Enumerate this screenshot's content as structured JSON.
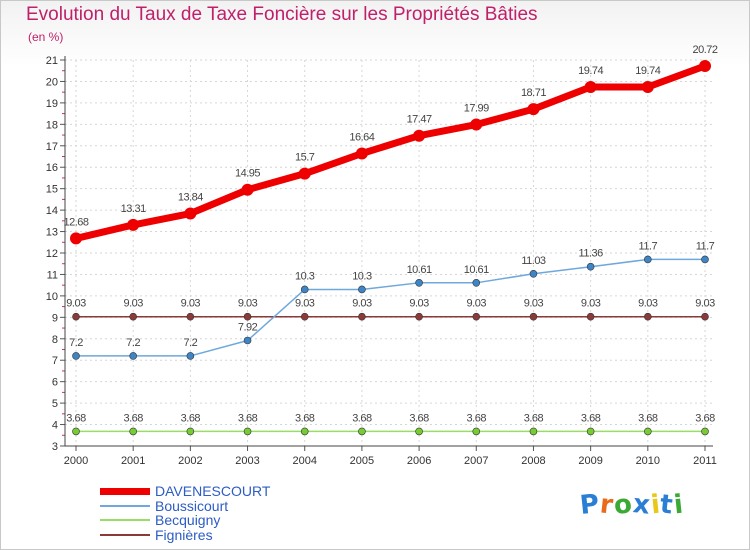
{
  "title": "Evolution du Taux de Taxe Foncière sur les Propriétés Bâties",
  "subtitle": "(en %)",
  "logo": {
    "text": "Proxiti",
    "letter_colors": [
      "#2a7fd4",
      "#e86a1a",
      "#3aaa35",
      "#2a7fd4",
      "#e8c81a",
      "#2a7fd4",
      "#3aaa35"
    ]
  },
  "chart_data": {
    "type": "line",
    "x": [
      "2000",
      "2001",
      "2002",
      "2003",
      "2004",
      "2005",
      "2006",
      "2007",
      "2008",
      "2009",
      "2010",
      "2011"
    ],
    "ylim": [
      3,
      21
    ],
    "yticks": [
      "3",
      "4",
      "5",
      "6",
      "7",
      "8",
      "9",
      "10",
      "11",
      "12",
      "13",
      "14",
      "15",
      "16",
      "17",
      "18",
      "19",
      "20",
      "21"
    ],
    "grid": true,
    "legend_position": "bottom-left",
    "series": [
      {
        "name": "DAVENESCOURT",
        "color": "#ee0000",
        "values": [
          12.68,
          13.31,
          13.84,
          14.95,
          15.7,
          16.64,
          17.47,
          17.99,
          18.71,
          19.74,
          19.74,
          20.72
        ],
        "labels": [
          "12.68",
          "13.31",
          "13.84",
          "14.95",
          "15.7",
          "16.64",
          "17.47",
          "17.99",
          "18.71",
          "19.74",
          "19.74",
          "20.72"
        ]
      },
      {
        "name": "Boussicourt",
        "color": "#6fa8dc",
        "values": [
          7.2,
          7.2,
          7.2,
          7.92,
          10.3,
          10.3,
          10.61,
          10.61,
          11.03,
          11.36,
          11.7,
          11.7
        ],
        "labels": [
          "7.2",
          "7.2",
          "7.2",
          "7.92",
          "10.3",
          "10.3",
          "10.61",
          "10.61",
          "11.03",
          "11.36",
          "11.7",
          "11.7"
        ]
      },
      {
        "name": "Becquigny",
        "color": "#99dd66",
        "values": [
          3.68,
          3.68,
          3.68,
          3.68,
          3.68,
          3.68,
          3.68,
          3.68,
          3.68,
          3.68,
          3.68,
          3.68
        ],
        "labels": [
          "3.68",
          "3.68",
          "3.68",
          "3.68",
          "3.68",
          "3.68",
          "3.68",
          "3.68",
          "3.68",
          "3.68",
          "3.68",
          "3.68"
        ]
      },
      {
        "name": "Fignières",
        "color": "#8b3a3a",
        "values": [
          9.03,
          9.03,
          9.03,
          9.03,
          9.03,
          9.03,
          9.03,
          9.03,
          9.03,
          9.03,
          9.03,
          9.03
        ],
        "labels": [
          "9.03",
          "9.03",
          "9.03",
          "9.03",
          "9.03",
          "9.03",
          "9.03",
          "9.03",
          "9.03",
          "9.03",
          "9.03",
          "9.03"
        ]
      }
    ]
  }
}
